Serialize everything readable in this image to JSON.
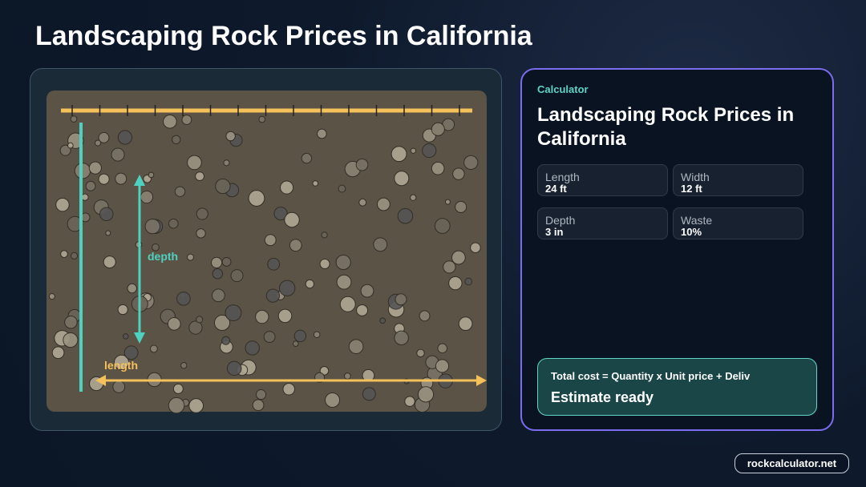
{
  "header": {
    "title": "Landscaping Rock Prices in California"
  },
  "illustration": {
    "depth_label": "depth",
    "length_label": "length"
  },
  "calculator": {
    "eyebrow": "Calculator",
    "heading": "Landscaping Rock Prices in California",
    "fields": [
      {
        "label": "Length",
        "value": "24 ft"
      },
      {
        "label": "Width",
        "value": "12 ft"
      },
      {
        "label": "Depth",
        "value": "3 in"
      },
      {
        "label": "Waste",
        "value": "10%"
      }
    ],
    "formula": "Total cost = Quantity x Unit price + Deliv",
    "status": "Estimate ready"
  },
  "footer": {
    "url": "rockcalculator.net"
  }
}
